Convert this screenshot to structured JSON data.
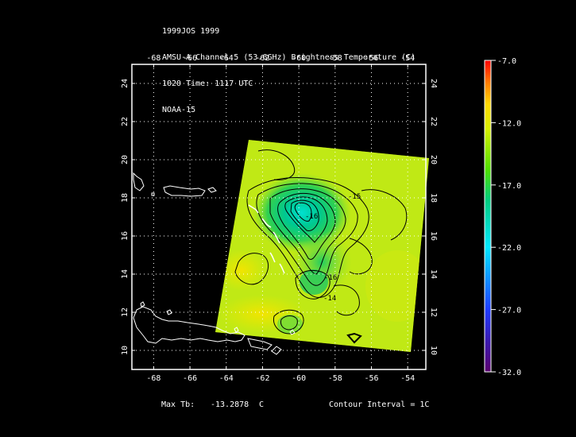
{
  "header": {
    "lines": [
      "1999JOS 1999",
      "AMSU-A Channel 5 (53.6GHz) Brightness Temperature (C)",
      "1020 Time: 1117 UTC",
      "NOAA-15"
    ]
  },
  "map": {
    "lon_ticks": [
      -68,
      -66,
      -64,
      -62,
      -60,
      -58,
      -56,
      -54
    ],
    "lat_ticks": [
      10,
      12,
      14,
      16,
      18,
      20,
      22,
      24
    ],
    "lon_range": [
      -69.2,
      -53.0
    ],
    "lat_range": [
      9.0,
      25.0
    ]
  },
  "contour_labels": [
    "-15",
    "-16",
    "-14",
    "-16"
  ],
  "colorbar": {
    "ticks": [
      "-7.0",
      "-12.0",
      "-17.0",
      "-22.0",
      "-27.0",
      "-32.0"
    ],
    "min": -32.0,
    "max": -7.0
  },
  "footer": {
    "max_label": "Max Tb:",
    "max_value": "-13.2878",
    "max_unit": "C",
    "contour": "Contour Interval = 1C"
  }
}
